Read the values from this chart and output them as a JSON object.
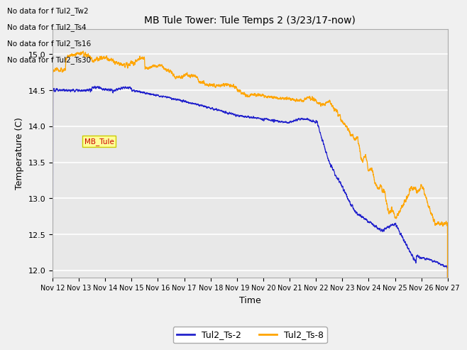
{
  "title": "MB Tule Tower: Tule Temps 2 (3/23/17-now)",
  "xlabel": "Time",
  "ylabel": "Temperature (C)",
  "ylim": [
    11.9,
    15.35
  ],
  "xlim": [
    0,
    15
  ],
  "x_tick_labels": [
    "Nov 12",
    "Nov 13",
    "Nov 14",
    "Nov 15",
    "Nov 16",
    "Nov 17",
    "Nov 18",
    "Nov 19",
    "Nov 20",
    "Nov 21",
    "Nov 22",
    "Nov 23",
    "Nov 24",
    "Nov 25",
    "Nov 26",
    "Nov 27"
  ],
  "y_ticks": [
    12.0,
    12.5,
    13.0,
    13.5,
    14.0,
    14.5,
    15.0
  ],
  "color_blue": "#2222CC",
  "color_orange": "#FFA500",
  "legend_entries": [
    "Tul2_Ts-2",
    "Tul2_Ts-8"
  ],
  "no_data_lines": [
    "No data for f Tul2_Tw2",
    "No data for f Tul2_Ts4",
    "No data for f Tul2_Ts16",
    "No data for f Tul2_Ts30"
  ],
  "background_color": "#f0f0f0",
  "plot_bg_color": "#e8e8e8",
  "grid_color": "#ffffff",
  "annotation_text": "MB_Tule",
  "annotation_color": "#cc0000",
  "annotation_bg": "#ffff99",
  "annotation_edge": "#cccc00"
}
